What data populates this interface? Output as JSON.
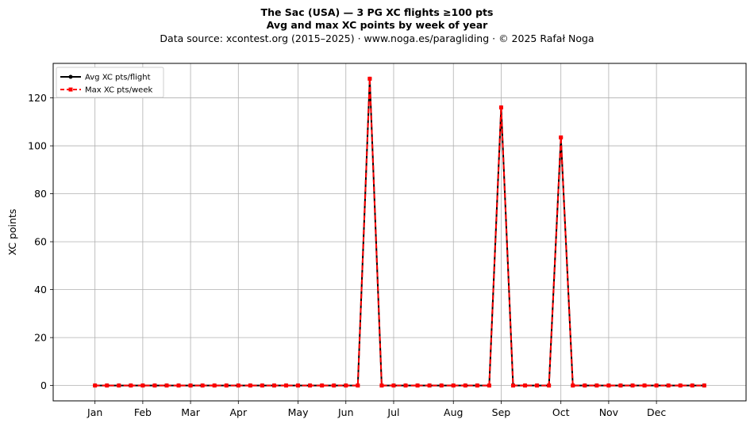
{
  "chart_data": {
    "type": "line",
    "title": "The Sac (USA)  —  3 PG XC flights ≥100 pts",
    "subtitle": "Avg and max XC points by week of year",
    "source": "Data source: xcontest.org (2015–2025)  ·  www.noga.es/paragliding  ·  © 2025 Rafał Noga",
    "xlabel": "",
    "ylabel": "XC points",
    "xlim": [
      -2.5,
      55.5
    ],
    "ylim": [
      -6.4,
      134.4
    ],
    "grid": true,
    "legend_position": "top-left",
    "x_ticks": [
      {
        "label": "Jan",
        "week": 1
      },
      {
        "label": "Feb",
        "week": 5
      },
      {
        "label": "Mar",
        "week": 9
      },
      {
        "label": "Apr",
        "week": 13
      },
      {
        "label": "May",
        "week": 18
      },
      {
        "label": "Jun",
        "week": 22
      },
      {
        "label": "Jul",
        "week": 26
      },
      {
        "label": "Aug",
        "week": 31
      },
      {
        "label": "Sep",
        "week": 35
      },
      {
        "label": "Oct",
        "week": 40
      },
      {
        "label": "Nov",
        "week": 44
      },
      {
        "label": "Dec",
        "week": 48
      }
    ],
    "y_ticks": [
      0,
      20,
      40,
      60,
      80,
      100,
      120
    ],
    "x": [
      1,
      2,
      3,
      4,
      5,
      6,
      7,
      8,
      9,
      10,
      11,
      12,
      13,
      14,
      15,
      16,
      17,
      18,
      19,
      20,
      21,
      22,
      23,
      24,
      25,
      26,
      27,
      28,
      29,
      30,
      31,
      32,
      33,
      34,
      35,
      36,
      37,
      38,
      39,
      40,
      41,
      42,
      43,
      44,
      45,
      46,
      47,
      48,
      49,
      50,
      51,
      52
    ],
    "series": [
      {
        "name": "Avg XC pts/flight",
        "color": "#000000",
        "style": "solid",
        "marker": "circle",
        "values": [
          0,
          0,
          0,
          0,
          0,
          0,
          0,
          0,
          0,
          0,
          0,
          0,
          0,
          0,
          0,
          0,
          0,
          0,
          0,
          0,
          0,
          0,
          0,
          128,
          0,
          0,
          0,
          0,
          0,
          0,
          0,
          0,
          0,
          0,
          116,
          0,
          0,
          0,
          0,
          103.5,
          0,
          0,
          0,
          0,
          0,
          0,
          0,
          0,
          0,
          0,
          0,
          0
        ]
      },
      {
        "name": "Max XC pts/week",
        "color": "#ff0000",
        "style": "dashed",
        "marker": "square",
        "values": [
          0,
          0,
          0,
          0,
          0,
          0,
          0,
          0,
          0,
          0,
          0,
          0,
          0,
          0,
          0,
          0,
          0,
          0,
          0,
          0,
          0,
          0,
          0,
          128,
          0,
          0,
          0,
          0,
          0,
          0,
          0,
          0,
          0,
          0,
          116,
          0,
          0,
          0,
          0,
          103.5,
          0,
          0,
          0,
          0,
          0,
          0,
          0,
          0,
          0,
          0,
          0,
          0
        ]
      }
    ]
  }
}
